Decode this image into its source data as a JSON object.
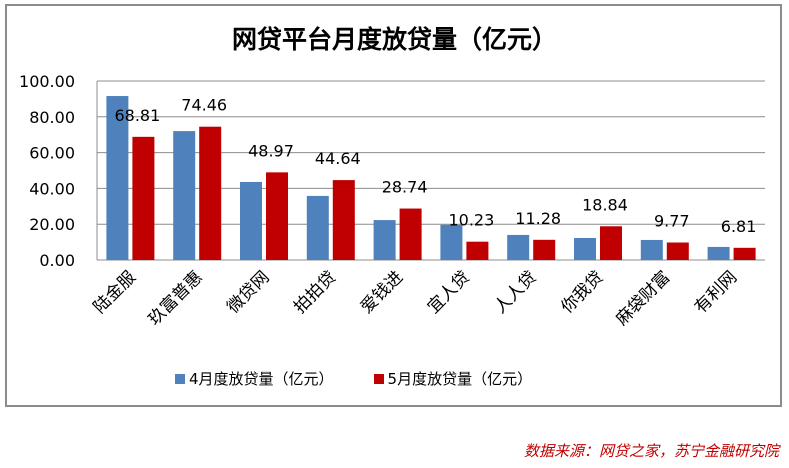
{
  "chart_data": {
    "type": "bar",
    "title": "网贷平台月度放贷量（亿元）",
    "categories": [
      "陆金服",
      "玖富普惠",
      "微贷网",
      "拍拍贷",
      "爱钱进",
      "宜人贷",
      "人人贷",
      "你我贷",
      "麻袋财富",
      "有利网"
    ],
    "series": [
      {
        "name": "4月度放贷量（亿元）",
        "color": "#4f81bd",
        "values": [
          91.6,
          72.0,
          43.6,
          35.8,
          22.3,
          19.7,
          14.0,
          12.3,
          11.2,
          7.3
        ]
      },
      {
        "name": "5月度放贷量（亿元）",
        "color": "#c00000",
        "values": [
          68.81,
          74.46,
          48.97,
          44.64,
          28.74,
          10.23,
          11.28,
          18.84,
          9.77,
          6.81
        ],
        "labels": [
          "68.81",
          "74.46",
          "48.97",
          "44.64",
          "28.74",
          "10.23",
          "11.28",
          "18.84",
          "9.77",
          "6.81"
        ]
      }
    ],
    "ylim": [
      0,
      100
    ],
    "yticks": [
      "0.00",
      "20.00",
      "40.00",
      "60.00",
      "80.00",
      "100.00"
    ],
    "grid": true,
    "legend": "bottom"
  },
  "source": "数据来源：网贷之家，苏宁金融研究院"
}
